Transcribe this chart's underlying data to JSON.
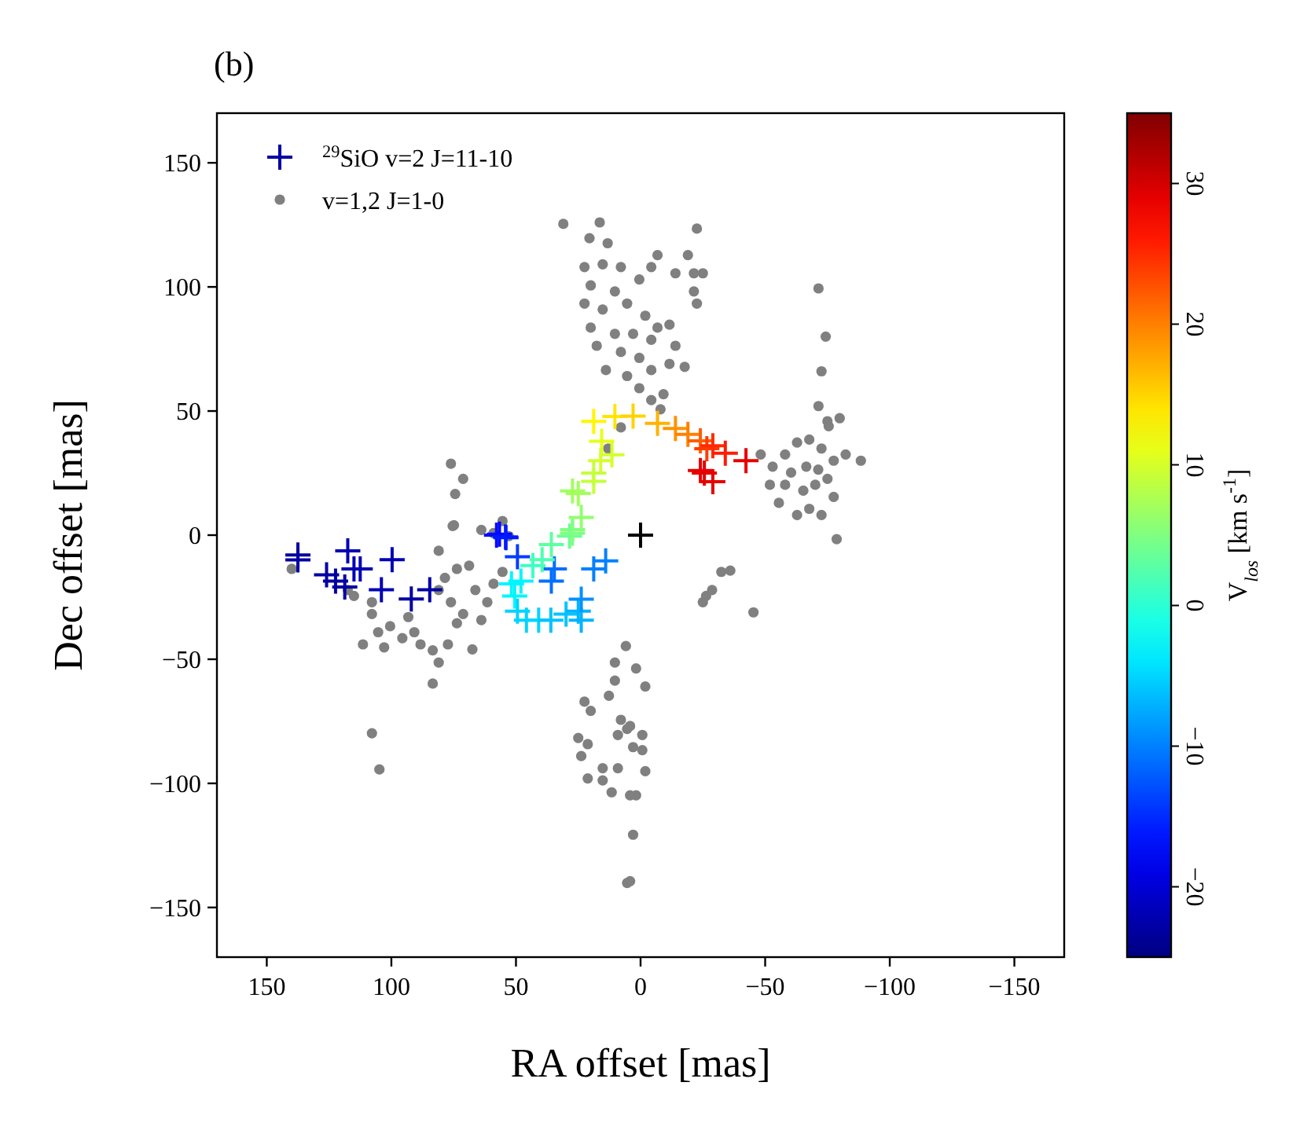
{
  "chart_data": {
    "type": "scatter",
    "title": "(b)",
    "xlabel": "RA offset [mas]",
    "ylabel": "Dec offset [mas]",
    "clabel": "V$_{los}$ [km s$^{-1}$]",
    "xlim": [
      170,
      -170
    ],
    "xticks": [
      150,
      100,
      50,
      0,
      -50,
      -100,
      -150
    ],
    "ylim": [
      -170,
      170
    ],
    "yticks": [
      -150,
      -100,
      -50,
      0,
      50,
      100,
      150
    ],
    "clim": [
      -25,
      35
    ],
    "cticks": [
      -20,
      -10,
      0,
      10,
      20,
      30
    ],
    "legend": "top left",
    "grid": false,
    "series": [
      {
        "name": "$^{29}$SiO v=2 J=11-10",
        "marker": "cross",
        "x": [
          137.5,
          137.5,
          126,
          122.4,
          117.5,
          115,
          112.5,
          118.7,
          99.7,
          104,
          92,
          84.6,
          57.8,
          56.6,
          54.2,
          54,
          49.4,
          34.6,
          35.8,
          18.8,
          14,
          51.8,
          48,
          50.5,
          43.2,
          39.5,
          35.8,
          49.4,
          45.8,
          40.9,
          36,
          29.9,
          25,
          23.8,
          23.8,
          27.3,
          28.5,
          27.3,
          23.8,
          25,
          27.3,
          18.8,
          15.6,
          11.5,
          16,
          18.8,
          18.8,
          10.3,
          3,
          -6.8,
          -14,
          -19,
          -24,
          -26.6,
          -29,
          -34,
          -42.3,
          -24,
          -25.6,
          -29
        ],
        "values": [
          -8,
          -10,
          -16,
          -18.5,
          -6.3,
          -13.6,
          -13.6,
          -20.9,
          -9.9,
          -22,
          -25.7,
          -22,
          0,
          0.4,
          -0.7,
          -1,
          -8.7,
          -13.6,
          -18.5,
          -13.6,
          -10.4,
          -19.6,
          -18.5,
          -24.5,
          -12.3,
          -9.9,
          -3.8,
          -30.6,
          -34.3,
          -34.3,
          -34.3,
          -31.8,
          -30.6,
          -34.3,
          -25.8,
          2.2,
          -0.4,
          0.8,
          7.1,
          16.8,
          17.8,
          21.7,
          37.8,
          32.4,
          30,
          25,
          45.8,
          47.8,
          48,
          45,
          43,
          40.6,
          38,
          34.8,
          36,
          33,
          30,
          26,
          25,
          21.5
        ],
        "colors": [
          "#0000a2",
          "#0000a2",
          "#0000a2",
          "#0000a2",
          "#0000b3",
          "#0000b3",
          "#0000b3",
          "#0000a2",
          "#0000b3",
          "#0000b3",
          "#0000a2",
          "#0000a2",
          "#0009ff",
          "#0009ff",
          "#001aff",
          "#001aff",
          "#003bff",
          "#006eff",
          "#006eff",
          "#0080ff",
          "#0080ff",
          "#00f6ff",
          "#00f6ff",
          "#00f6ff",
          "#3bffc4",
          "#4dffb3",
          "#5dffa2",
          "#00d4ff",
          "#00d4ff",
          "#00d4ff",
          "#00c4ff",
          "#00c4ff",
          "#00b3ff",
          "#00b3ff",
          "#0091ff",
          "#80ff80",
          "#6eff91",
          "#80ff80",
          "#91ff6e",
          "#a2ff5d",
          "#a2ff5d",
          "#c4ff3b",
          "#e6ff1a",
          "#d4ff2b",
          "#d4ff2b",
          "#c4ff3b",
          "#fff600",
          "#ffe600",
          "#ffd400",
          "#ffb300",
          "#ff9100",
          "#ff8000",
          "#ff5d00",
          "#ff3b00",
          "#ff2b00",
          "#ff1a00",
          "#e60000",
          "#e60000",
          "#e60000",
          "#e60000"
        ]
      },
      {
        "name": "v=1,2 J=1-0",
        "color": "#808080",
        "marker": "circle",
        "x": [
          31,
          16.4,
          20.5,
          13.2,
          -22.6,
          22.5,
          15.2,
          7.9,
          20,
          10.3,
          0.5,
          -6.8,
          -4.3,
          -14,
          -19,
          -21.4,
          -25,
          -21.4,
          -22.6,
          22.5,
          15.2,
          5.4,
          -1.9,
          20,
          10.3,
          3,
          -6.8,
          -11.6,
          17.6,
          7.9,
          -4.3,
          -14,
          0.5,
          13.9,
          5.4,
          -4.3,
          -11.6,
          -17.7,
          0.5,
          -4.3,
          -9.2,
          -8,
          7.9,
          13,
          -48.2,
          -53,
          -58,
          -62.8,
          -67.7,
          -72.6,
          -77.5,
          -88.4,
          -82.3,
          -58,
          -65.3,
          -70.1,
          -75,
          -55.5,
          -62.8,
          -72.6,
          -78.7,
          -66.5,
          -60.4,
          -71.3,
          -77.5,
          -51.9,
          -67.7,
          -71.4,
          -74.3,
          -72.6,
          -71.4,
          -75,
          -79.9,
          -75.5,
          76.1,
          71.2,
          74.4,
          75.4,
          55.4,
          59,
          52.9,
          63.9,
          140,
          117.5,
          115,
          107.8,
          107.8,
          105.3,
          100.5,
          95.6,
          111.4,
          102.9,
          88.3,
          83.4,
          81,
          83.4,
          81,
          78.5,
          73.7,
          76.1,
          71.2,
          66.3,
          68.8,
          61.5,
          59,
          55.4,
          63.9,
          77.3,
          67.5,
          81,
          93.2,
          90.8,
          73.7,
          107.8,
          104.8,
          74.9,
          -25,
          -28.7,
          -32.4,
          -36,
          -26.3,
          -45.3,
          5.9,
          10.3,
          1.8,
          -1.9,
          10.3,
          12.7,
          22.5,
          20,
          7.9,
          4.2,
          9.1,
          -0.7,
          25,
          21.2,
          -0.7,
          23.8,
          15.2,
          9.1,
          -1.9,
          21.2,
          15.2,
          11.6,
          4.2,
          1.8,
          3,
          4.2,
          5.4,
          3,
          5.4
        ],
        "values": [
          125.4,
          126,
          119.6,
          117.6,
          123.5,
          108,
          109.1,
          108,
          100.6,
          98.2,
          103,
          112.8,
          108,
          105.5,
          112.8,
          105.5,
          105.5,
          98.2,
          93.3,
          93.3,
          90.9,
          93.3,
          88.4,
          83.6,
          81.1,
          81.1,
          83.6,
          84.8,
          76.3,
          73.8,
          78.7,
          76.3,
          71.4,
          66.5,
          64.1,
          66.5,
          69,
          67.8,
          59.2,
          54.4,
          56.8,
          50.7,
          43.4,
          34.9,
          32.5,
          27.6,
          32.5,
          37.3,
          38.5,
          34.9,
          30,
          30,
          32.5,
          20.3,
          17.9,
          20.3,
          22.7,
          13,
          8.1,
          8.1,
          -1.6,
          27.6,
          25.2,
          26.4,
          15.4,
          20.3,
          10.6,
          99.4,
          80,
          66,
          52,
          45.9,
          47.1,
          43.9,
          28.8,
          22.7,
          16.6,
          3.7,
          5.7,
          0.8,
          -0.4,
          2.1,
          -13.6,
          -22.1,
          -24.5,
          -27,
          -31.8,
          -39.1,
          -36.7,
          -41.5,
          -44,
          -45.2,
          -44,
          -46.4,
          -51.3,
          -59.8,
          -22.1,
          -17.2,
          -13.6,
          -27,
          -31.8,
          -22.1,
          -12.3,
          -27,
          -19.6,
          -14.8,
          -34.2,
          -44,
          -46,
          -6.3,
          -33,
          -39.1,
          -35.5,
          -79.8,
          -94.4,
          4,
          -27,
          -22.1,
          -14.8,
          -14.3,
          -24.5,
          -31.1,
          -44.7,
          -51.3,
          -53.7,
          -61,
          -58.6,
          -64.7,
          -67.1,
          -70.8,
          -74.4,
          -76.9,
          -80.5,
          -80.5,
          -81.7,
          -84.2,
          -86.6,
          -89,
          -93.9,
          -93.9,
          -95.1,
          -98,
          -98.8,
          -103.6,
          -104.8,
          -104.8,
          -120.7,
          -139.4,
          -140.1,
          -85.4,
          -78.1
        ]
      },
      {
        "color": "#000000",
        "marker": "cross",
        "x": [
          0
        ],
        "values": [
          0
        ]
      }
    ]
  }
}
